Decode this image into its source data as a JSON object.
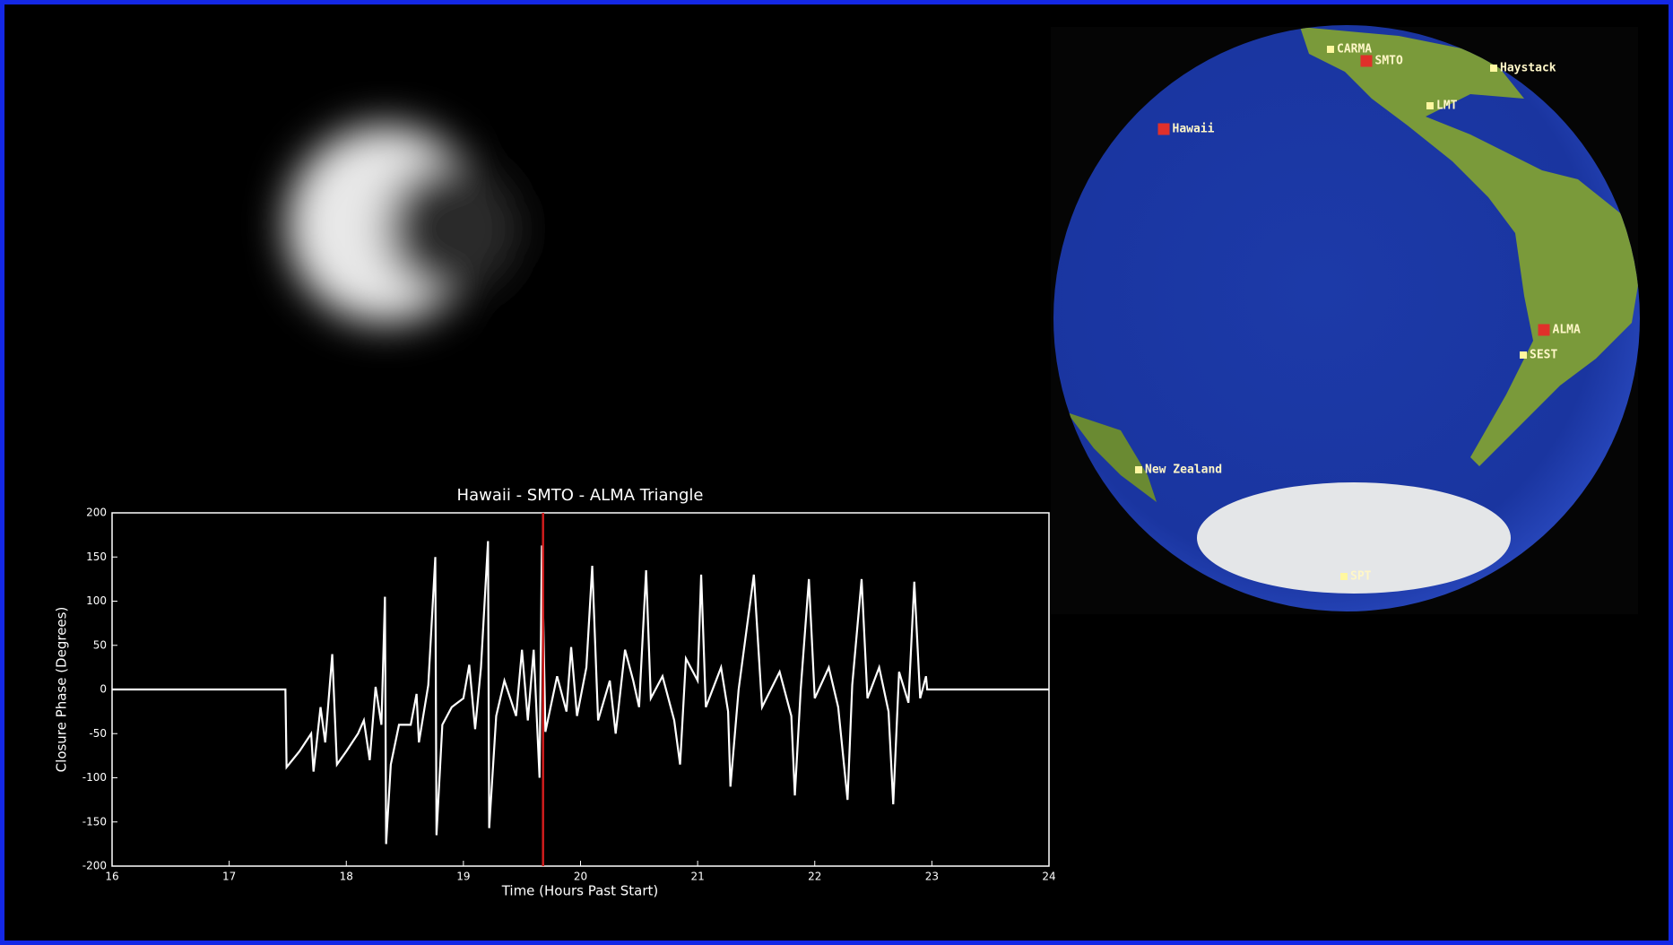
{
  "chart_data": {
    "type": "line",
    "title": "Hawaii - SMTO - ALMA Triangle",
    "x_label": "Time (Hours Past Start)",
    "y_label": "Closure Phase (Degrees)",
    "xlim": [
      16,
      24
    ],
    "ylim": [
      -200,
      200
    ],
    "xticks": [
      16,
      17,
      18,
      19,
      20,
      21,
      22,
      23,
      24
    ],
    "yticks": [
      -200,
      -150,
      -100,
      -50,
      0,
      50,
      100,
      150,
      200
    ],
    "vline": {
      "x": 19.68,
      "color": "#d01c1c"
    },
    "series": [
      {
        "color": "#ffffff",
        "x": [
          16,
          17.48,
          17.49,
          17.6,
          17.7,
          17.72,
          17.78,
          17.82,
          17.88,
          17.92,
          18.0,
          18.1,
          18.15,
          18.2,
          18.25,
          18.3,
          18.33,
          18.34,
          18.38,
          18.45,
          18.55,
          18.6,
          18.62,
          18.7,
          18.76,
          18.77,
          18.82,
          18.9,
          19.0,
          19.05,
          19.1,
          19.15,
          19.21,
          19.22,
          19.28,
          19.35,
          19.45,
          19.5,
          19.55,
          19.6,
          19.65,
          19.67,
          19.7,
          19.8,
          19.88,
          19.92,
          19.97,
          20.05,
          20.1,
          20.15,
          20.25,
          20.3,
          20.38,
          20.45,
          20.5,
          20.56,
          20.6,
          20.7,
          20.8,
          20.85,
          20.9,
          21.0,
          21.03,
          21.07,
          21.2,
          21.26,
          21.28,
          21.35,
          21.48,
          21.55,
          21.7,
          21.8,
          21.83,
          21.88,
          21.95,
          22.0,
          22.12,
          22.2,
          22.28,
          22.32,
          22.4,
          22.45,
          22.55,
          22.63,
          22.67,
          22.72,
          22.8,
          22.85,
          22.9,
          22.95,
          22.96,
          24
        ],
        "values": [
          0,
          0,
          -88,
          -70,
          -50,
          -93,
          -20,
          -60,
          40,
          -85,
          -70,
          -50,
          -35,
          -80,
          3,
          -40,
          105,
          -175,
          -85,
          -40,
          -40,
          -5,
          -60,
          5,
          150,
          -165,
          -40,
          -20,
          -10,
          28,
          -45,
          25,
          168,
          -157,
          -30,
          10,
          -30,
          45,
          -35,
          45,
          -100,
          163,
          -48,
          15,
          -25,
          48,
          -30,
          25,
          140,
          -35,
          10,
          -50,
          45,
          10,
          -20,
          135,
          -10,
          15,
          -35,
          -85,
          35,
          10,
          130,
          -20,
          25,
          -25,
          -110,
          0,
          130,
          -20,
          20,
          -30,
          -120,
          0,
          125,
          -10,
          25,
          -20,
          -125,
          5,
          125,
          -10,
          25,
          -25,
          -130,
          20,
          -15,
          122,
          -10,
          15,
          0,
          0
        ]
      }
    ]
  },
  "map": {
    "sites": [
      {
        "label": "CARMA",
        "color": "#fff7a0"
      },
      {
        "label": "SMTO",
        "color": "#e0302a"
      },
      {
        "label": "Haystack",
        "color": "#fff7a0"
      },
      {
        "label": "LMT",
        "color": "#fff7a0"
      },
      {
        "label": "Hawaii",
        "color": "#e0302a"
      },
      {
        "label": "ALMA",
        "color": "#e0302a"
      },
      {
        "label": "SEST",
        "color": "#fff7a0"
      },
      {
        "label": "New Zealand",
        "color": "#fff7a0"
      },
      {
        "label": "SPT",
        "color": "#fff7a0"
      }
    ]
  }
}
